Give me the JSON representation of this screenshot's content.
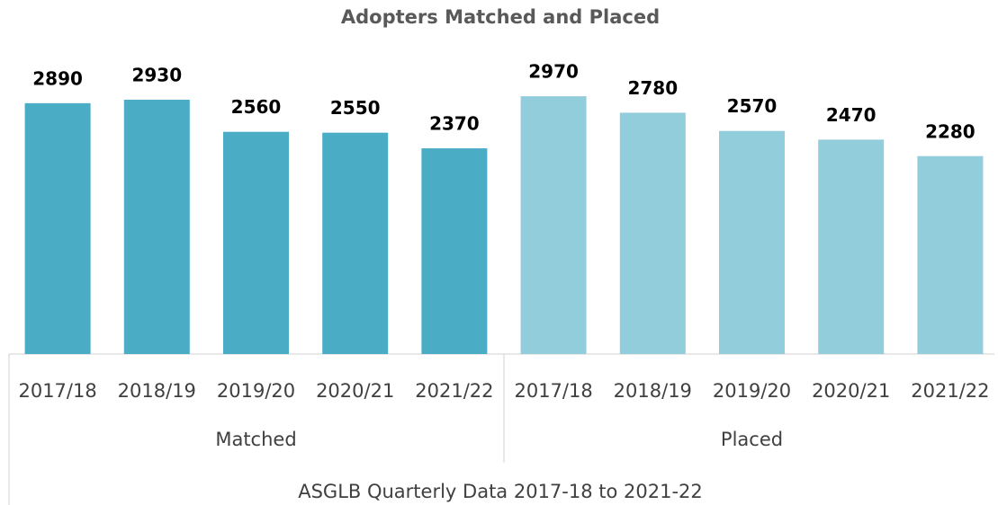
{
  "chart_data": {
    "type": "bar",
    "title": "Adopters Matched and Placed",
    "x_label": "ASGLB Quarterly Data 2017-18 to 2021-22",
    "categories": [
      "2017/18",
      "2018/19",
      "2019/20",
      "2020/21",
      "2021/22"
    ],
    "series": [
      {
        "name": "Matched",
        "color": "#4bacc6",
        "values": [
          2890,
          2930,
          2560,
          2550,
          2370
        ]
      },
      {
        "name": "Placed",
        "color": "#92cddc",
        "values": [
          2970,
          2780,
          2570,
          2470,
          2280
        ]
      }
    ]
  }
}
